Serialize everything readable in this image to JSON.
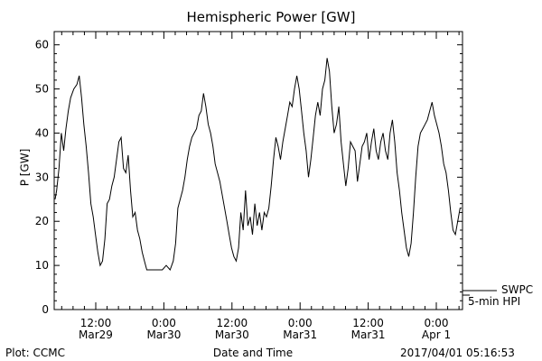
{
  "chart_data": {
    "type": "line",
    "title": "Hemispheric Power [GW]",
    "xlabel": "Date and Time",
    "ylabel": "P [GW]",
    "ylim": [
      0,
      63
    ],
    "yticks": [
      0,
      10,
      20,
      30,
      40,
      50,
      60
    ],
    "xlim_hours": [
      -37.5,
      11
    ],
    "x_ticks": [
      {
        "h": -36,
        "line1": "12:00",
        "line2": "Mar29"
      },
      {
        "h": -24,
        "line1": "0:00",
        "line2": "Mar30"
      },
      {
        "h": -12,
        "line1": "12:00",
        "line2": "Mar30"
      },
      {
        "h": 0,
        "line1": "0:00",
        "line2": "Mar31"
      },
      {
        "h": 12,
        "line1": "12:00",
        "line2": "Mar31"
      },
      {
        "h": 24,
        "line1": "0:00",
        "line2": "Apr 1"
      }
    ],
    "grid": false,
    "series": [
      {
        "name": "SWPC",
        "values": []
      },
      {
        "name": "5-min HPI",
        "points": [
          [
            -7.8,
            25
          ],
          [
            -7.6,
            27
          ],
          [
            -7.3,
            32
          ],
          [
            -7.0,
            40
          ],
          [
            -6.7,
            36
          ],
          [
            -6.4,
            41
          ],
          [
            -6.1,
            45
          ],
          [
            -5.8,
            48
          ],
          [
            -5.4,
            50
          ],
          [
            -5.0,
            51
          ],
          [
            -4.7,
            53
          ],
          [
            -4.4,
            48
          ],
          [
            -4.1,
            42
          ],
          [
            -3.8,
            37
          ],
          [
            -3.5,
            31
          ],
          [
            -3.2,
            24
          ],
          [
            -2.9,
            21
          ],
          [
            -2.6,
            17
          ],
          [
            -2.3,
            13
          ],
          [
            -2.0,
            10
          ],
          [
            -1.7,
            11
          ],
          [
            -1.4,
            16
          ],
          [
            -1.1,
            24
          ],
          [
            -0.8,
            25
          ],
          [
            -0.5,
            28
          ],
          [
            -0.2,
            30
          ],
          [
            0.1,
            34
          ],
          [
            0.4,
            38
          ],
          [
            0.7,
            39
          ],
          [
            1.0,
            32
          ],
          [
            1.3,
            31
          ],
          [
            1.6,
            35
          ],
          [
            1.9,
            27
          ],
          [
            2.2,
            21
          ],
          [
            2.5,
            22
          ],
          [
            2.8,
            18
          ],
          [
            3.1,
            16
          ],
          [
            3.4,
            13
          ],
          [
            3.7,
            11
          ],
          [
            4.0,
            9
          ],
          [
            4.5,
            9
          ],
          [
            5.0,
            9
          ],
          [
            5.5,
            9
          ],
          [
            6.0,
            9
          ],
          [
            6.5,
            10
          ],
          [
            7.0,
            9
          ],
          [
            7.4,
            11
          ],
          [
            7.7,
            15
          ],
          [
            8.0,
            23
          ],
          [
            8.3,
            25
          ],
          [
            8.6,
            27
          ],
          [
            8.9,
            30
          ],
          [
            9.2,
            34
          ],
          [
            9.5,
            37
          ],
          [
            9.8,
            39
          ],
          [
            10.1,
            40
          ],
          [
            10.4,
            41
          ],
          [
            10.7,
            44
          ],
          [
            11.0,
            45
          ],
          [
            11.3,
            49
          ],
          [
            11.6,
            46
          ],
          [
            11.9,
            42
          ],
          [
            12.2,
            40
          ],
          [
            12.5,
            37
          ],
          [
            12.8,
            33
          ],
          [
            13.1,
            31
          ],
          [
            13.4,
            29
          ],
          [
            13.7,
            26
          ],
          [
            14.0,
            23
          ],
          [
            14.3,
            20
          ],
          [
            14.6,
            17
          ],
          [
            14.9,
            14
          ],
          [
            15.2,
            12
          ],
          [
            15.5,
            11
          ],
          [
            15.8,
            14
          ],
          [
            16.1,
            22
          ],
          [
            16.4,
            18
          ],
          [
            16.7,
            27
          ],
          [
            17.0,
            19
          ],
          [
            17.3,
            21
          ],
          [
            17.6,
            17
          ],
          [
            17.9,
            24
          ],
          [
            18.2,
            19
          ],
          [
            18.5,
            22
          ],
          [
            18.8,
            18
          ],
          [
            19.1,
            22
          ],
          [
            19.4,
            21
          ],
          [
            19.7,
            23
          ],
          [
            20.0,
            28
          ],
          [
            20.3,
            34
          ],
          [
            20.6,
            39
          ],
          [
            20.9,
            37
          ],
          [
            21.2,
            34
          ],
          [
            21.5,
            38
          ],
          [
            21.8,
            41
          ],
          [
            22.1,
            44
          ],
          [
            22.4,
            47
          ],
          [
            22.7,
            46
          ],
          [
            23.0,
            50
          ],
          [
            23.3,
            53
          ],
          [
            23.6,
            50
          ],
          [
            23.9,
            45
          ],
          [
            24.2,
            40
          ],
          [
            24.5,
            36
          ],
          [
            24.8,
            30
          ],
          [
            25.1,
            34
          ],
          [
            25.4,
            39
          ],
          [
            25.7,
            44
          ],
          [
            26.0,
            47
          ],
          [
            26.3,
            44
          ],
          [
            26.6,
            50
          ],
          [
            26.9,
            52
          ],
          [
            27.2,
            57
          ],
          [
            27.5,
            54
          ],
          [
            27.8,
            46
          ],
          [
            28.1,
            40
          ],
          [
            28.4,
            42
          ],
          [
            28.7,
            46
          ],
          [
            29.0,
            38
          ],
          [
            29.3,
            33
          ],
          [
            29.6,
            28
          ],
          [
            29.9,
            32
          ],
          [
            30.2,
            38
          ],
          [
            30.5,
            37
          ],
          [
            30.8,
            36
          ],
          [
            31.1,
            29
          ],
          [
            31.4,
            33
          ],
          [
            31.7,
            37
          ],
          [
            32.0,
            38
          ],
          [
            32.3,
            40
          ],
          [
            32.6,
            34
          ],
          [
            32.9,
            38
          ],
          [
            33.2,
            41
          ],
          [
            33.5,
            36
          ],
          [
            33.8,
            34
          ],
          [
            34.1,
            38
          ],
          [
            34.4,
            40
          ],
          [
            34.7,
            36
          ],
          [
            35.0,
            34
          ],
          [
            35.3,
            40
          ],
          [
            35.6,
            43
          ],
          [
            35.9,
            38
          ],
          [
            36.2,
            31
          ],
          [
            36.5,
            27
          ],
          [
            36.8,
            22
          ],
          [
            37.1,
            18
          ],
          [
            37.4,
            14
          ],
          [
            37.7,
            12
          ],
          [
            38.0,
            15
          ],
          [
            38.3,
            22
          ],
          [
            38.6,
            30
          ],
          [
            38.9,
            37
          ],
          [
            39.2,
            40
          ],
          [
            39.5,
            41
          ],
          [
            39.8,
            42
          ],
          [
            40.1,
            43
          ],
          [
            40.4,
            45
          ],
          [
            40.7,
            47
          ],
          [
            41.0,
            44
          ],
          [
            41.3,
            42
          ],
          [
            41.6,
            40
          ],
          [
            41.9,
            37
          ],
          [
            42.2,
            33
          ],
          [
            42.5,
            31
          ],
          [
            42.8,
            27
          ],
          [
            43.1,
            22
          ],
          [
            43.4,
            18
          ],
          [
            43.7,
            17
          ],
          [
            44.0,
            20
          ],
          [
            44.3,
            23
          ],
          [
            44.5,
            23
          ]
        ]
      }
    ],
    "legend_position": "lower-right"
  },
  "labels": {
    "title": "Hemispheric Power [GW]",
    "xlabel": "Date and Time",
    "ylabel": "P [GW]",
    "footer_left": "Plot: CCMC",
    "footer_right": "2017/04/01 05:16:53",
    "legend_swpc": "SWPC",
    "legend_hpi": "5-min HPI"
  }
}
